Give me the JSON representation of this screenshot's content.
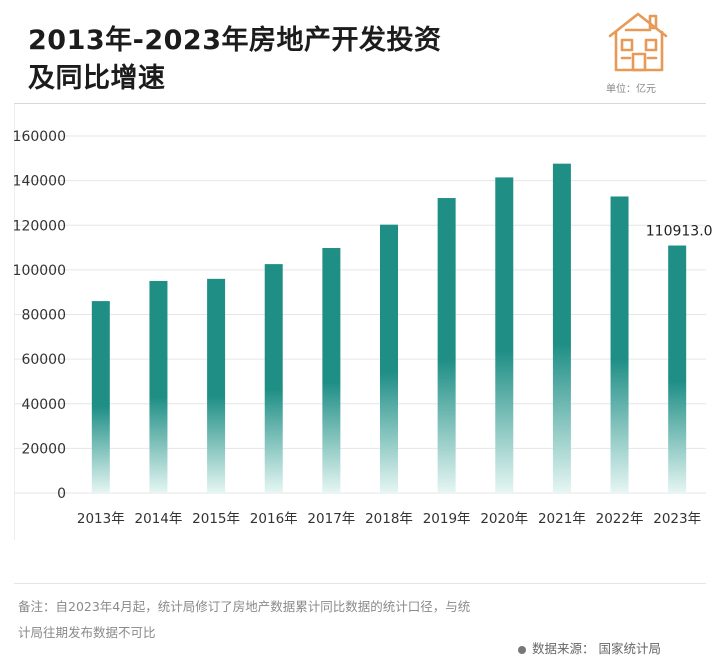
{
  "header": {
    "title_line1": "2013年-2023年房地产开发投资",
    "title_line2": "及同比增速",
    "unit_label": "单位：亿元",
    "logo_icon": "house-icon",
    "logo_color": "#e79a57"
  },
  "chart_data": {
    "type": "bar",
    "categories": [
      "2013年",
      "2014年",
      "2015年",
      "2016年",
      "2017年",
      "2018年",
      "2019年",
      "2020年",
      "2021年",
      "2022年",
      "2023年"
    ],
    "values": [
      86013,
      95036,
      95979,
      102581,
      109799,
      120264,
      132194,
      141443,
      147602,
      132895,
      110913
    ],
    "ylim": [
      0,
      160000
    ],
    "yticks": [
      "0",
      "20000",
      "40000",
      "60000",
      "80000",
      "100000",
      "120000",
      "140000",
      "160000"
    ],
    "annotations": [
      {
        "category": "2023年",
        "label": "110913.0"
      }
    ],
    "grid": true,
    "bar_color": "#1f8f86",
    "bar_fade_color": "#e6f6f3"
  },
  "footer": {
    "note_line1": "备注：自2023年4月起，统计局修订了房地产数据累计同比数据的统计口径，与统",
    "note_line2": "计局往期发布数据不可比",
    "source": "数据来源：  国家统计局"
  }
}
